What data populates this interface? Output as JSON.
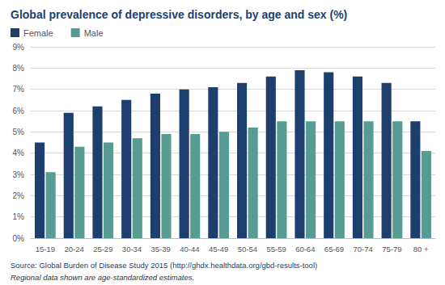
{
  "chart_data": {
    "type": "bar",
    "title": "Global prevalence of depressive disorders, by age and sex (%)",
    "categories": [
      "15-19",
      "20-24",
      "25-29",
      "30-34",
      "35-39",
      "40-44",
      "45-49",
      "50-54",
      "55-59",
      "60-64",
      "65-69",
      "70-74",
      "75-79",
      "80 +"
    ],
    "series": [
      {
        "name": "Female",
        "color": "#1c3f6e",
        "values": [
          4.5,
          5.9,
          6.2,
          6.5,
          6.8,
          7.0,
          7.1,
          7.3,
          7.6,
          7.9,
          7.8,
          7.6,
          7.3,
          5.5
        ]
      },
      {
        "name": "Male",
        "color": "#579c92",
        "values": [
          3.1,
          4.3,
          4.5,
          4.7,
          4.9,
          4.9,
          5.0,
          5.2,
          5.5,
          5.5,
          5.5,
          5.5,
          5.5,
          4.1
        ]
      }
    ],
    "ylim": [
      0,
      9
    ],
    "yticks": [
      {
        "value": 0,
        "label": "0%"
      },
      {
        "value": 1,
        "label": "1%"
      },
      {
        "value": 2,
        "label": "2%"
      },
      {
        "value": 3,
        "label": "3%"
      },
      {
        "value": 4,
        "label": "4%"
      },
      {
        "value": 5,
        "label": "5%"
      },
      {
        "value": 6,
        "label": "6%"
      },
      {
        "value": 7,
        "label": "7%"
      },
      {
        "value": 8,
        "label": "8%"
      },
      {
        "value": 9,
        "label": "9%"
      }
    ],
    "grid": true,
    "legend": "top-left",
    "annotations": [
      "Source: Global Burden of Disease Study 2015 (http://ghdx.healthdata.org/gbd-results-tool)",
      "Regional data shown are age-standardized estimates."
    ]
  }
}
